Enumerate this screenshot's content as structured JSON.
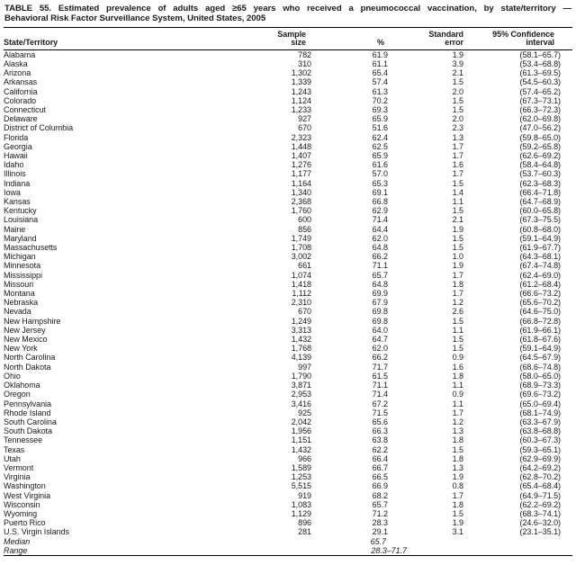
{
  "title": {
    "line1": "TABLE 55. Estimated prevalence of adults aged ≥65 years who received a pneumococcal vaccination, by state/territory —",
    "line2": "Behavioral Risk Factor Surveillance System, United States, 2005"
  },
  "columns": {
    "state": "State/Territory",
    "sample_line1": "Sample",
    "sample_line2": "size",
    "pct": "%",
    "se_line1": "Standard",
    "se_line2": "error",
    "ci_line1": "95% Confidence",
    "ci_line2": "interval"
  },
  "rows": [
    {
      "state": "Alabama",
      "sample": "782",
      "pct": "61.9",
      "se": "1.9",
      "ci": "(58.1–65.7)"
    },
    {
      "state": "Alaska",
      "sample": "310",
      "pct": "61.1",
      "se": "3.9",
      "ci": "(53.4–68.8)"
    },
    {
      "state": "Arizona",
      "sample": "1,302",
      "pct": "65.4",
      "se": "2.1",
      "ci": "(61.3–69.5)"
    },
    {
      "state": "Arkansas",
      "sample": "1,339",
      "pct": "57.4",
      "se": "1.5",
      "ci": "(54.5–60.3)"
    },
    {
      "state": "California",
      "sample": "1,243",
      "pct": "61.3",
      "se": "2.0",
      "ci": "(57.4–65.2)"
    },
    {
      "state": "Colorado",
      "sample": "1,124",
      "pct": "70.2",
      "se": "1.5",
      "ci": "(67.3–73.1)"
    },
    {
      "state": "Connecticut",
      "sample": "1,233",
      "pct": "69.3",
      "se": "1.5",
      "ci": "(66.3–72.3)"
    },
    {
      "state": "Delaware",
      "sample": "927",
      "pct": "65.9",
      "se": "2.0",
      "ci": "(62.0–69.8)"
    },
    {
      "state": "District of Columbia",
      "sample": "670",
      "pct": "51.6",
      "se": "2.3",
      "ci": "(47.0–56.2)"
    },
    {
      "state": "Florida",
      "sample": "2,323",
      "pct": "62.4",
      "se": "1.3",
      "ci": "(59.8–65.0)"
    },
    {
      "state": "Georgia",
      "sample": "1,448",
      "pct": "62.5",
      "se": "1.7",
      "ci": "(59.2–65.8)"
    },
    {
      "state": "Hawaii",
      "sample": "1,407",
      "pct": "65.9",
      "se": "1.7",
      "ci": "(62.6–69.2)"
    },
    {
      "state": "Idaho",
      "sample": "1,276",
      "pct": "61.6",
      "se": "1.6",
      "ci": "(58.4–64.8)"
    },
    {
      "state": "Illinois",
      "sample": "1,177",
      "pct": "57.0",
      "se": "1.7",
      "ci": "(53.7–60.3)"
    },
    {
      "state": "Indiana",
      "sample": "1,164",
      "pct": "65.3",
      "se": "1.5",
      "ci": "(62.3–68.3)"
    },
    {
      "state": "Iowa",
      "sample": "1,340",
      "pct": "69.1",
      "se": "1.4",
      "ci": "(66.4–71.8)"
    },
    {
      "state": "Kansas",
      "sample": "2,368",
      "pct": "66.8",
      "se": "1.1",
      "ci": "(64.7–68.9)"
    },
    {
      "state": "Kentucky",
      "sample": "1,760",
      "pct": "62.9",
      "se": "1.5",
      "ci": "(60.0–65.8)"
    },
    {
      "state": "Louisiana",
      "sample": "600",
      "pct": "71.4",
      "se": "2.1",
      "ci": "(67.3–75.5)"
    },
    {
      "state": "Maine",
      "sample": "856",
      "pct": "64.4",
      "se": "1.9",
      "ci": "(60.8–68.0)"
    },
    {
      "state": "Maryland",
      "sample": "1,749",
      "pct": "62.0",
      "se": "1.5",
      "ci": "(59.1–64.9)"
    },
    {
      "state": "Massachusetts",
      "sample": "1,708",
      "pct": "64.8",
      "se": "1.5",
      "ci": "(61.9–67.7)"
    },
    {
      "state": "Michigan",
      "sample": "3,002",
      "pct": "66.2",
      "se": "1.0",
      "ci": "(64.3–68.1)"
    },
    {
      "state": "Minnesota",
      "sample": "661",
      "pct": "71.1",
      "se": "1.9",
      "ci": "(67.4–74.8)"
    },
    {
      "state": "Mississippi",
      "sample": "1,074",
      "pct": "65.7",
      "se": "1.7",
      "ci": "(62.4–69.0)"
    },
    {
      "state": "Missouri",
      "sample": "1,418",
      "pct": "64.8",
      "se": "1.8",
      "ci": "(61.2–68.4)"
    },
    {
      "state": "Montana",
      "sample": "1,112",
      "pct": "69.9",
      "se": "1.7",
      "ci": "(66.6–73.2)"
    },
    {
      "state": "Nebraska",
      "sample": "2,310",
      "pct": "67.9",
      "se": "1.2",
      "ci": "(65.6–70.2)"
    },
    {
      "state": "Nevada",
      "sample": "670",
      "pct": "69.8",
      "se": "2.6",
      "ci": "(64.6–75.0)"
    },
    {
      "state": "New Hampshire",
      "sample": "1,249",
      "pct": "69.8",
      "se": "1.5",
      "ci": "(66.8–72.8)"
    },
    {
      "state": "New Jersey",
      "sample": "3,313",
      "pct": "64.0",
      "se": "1.1",
      "ci": "(61.9–66.1)"
    },
    {
      "state": "New Mexico",
      "sample": "1,432",
      "pct": "64.7",
      "se": "1.5",
      "ci": "(61.8–67.6)"
    },
    {
      "state": "New York",
      "sample": "1,768",
      "pct": "62.0",
      "se": "1.5",
      "ci": "(59.1–64.9)"
    },
    {
      "state": "North Carolina",
      "sample": "4,139",
      "pct": "66.2",
      "se": "0.9",
      "ci": "(64.5–67.9)"
    },
    {
      "state": "North Dakota",
      "sample": "997",
      "pct": "71.7",
      "se": "1.6",
      "ci": "(68.6–74.8)"
    },
    {
      "state": "Ohio",
      "sample": "1,790",
      "pct": "61.5",
      "se": "1.8",
      "ci": "(58.0–65.0)"
    },
    {
      "state": "Oklahoma",
      "sample": "3,871",
      "pct": "71.1",
      "se": "1.1",
      "ci": "(68.9–73.3)"
    },
    {
      "state": "Oregon",
      "sample": "2,953",
      "pct": "71.4",
      "se": "0.9",
      "ci": "(69.6–73.2)"
    },
    {
      "state": "Pennsylvania",
      "sample": "3,416",
      "pct": "67.2",
      "se": "1.1",
      "ci": "(65.0–69.4)"
    },
    {
      "state": "Rhode Island",
      "sample": "925",
      "pct": "71.5",
      "se": "1.7",
      "ci": "(68.1–74.9)"
    },
    {
      "state": "South Carolina",
      "sample": "2,042",
      "pct": "65.6",
      "se": "1.2",
      "ci": "(63.3–67.9)"
    },
    {
      "state": "South Dakota",
      "sample": "1,956",
      "pct": "66.3",
      "se": "1.3",
      "ci": "(63.8–68.8)"
    },
    {
      "state": "Tennessee",
      "sample": "1,151",
      "pct": "63.8",
      "se": "1.8",
      "ci": "(60.3–67.3)"
    },
    {
      "state": "Texas",
      "sample": "1,432",
      "pct": "62.2",
      "se": "1.5",
      "ci": "(59.3–65.1)"
    },
    {
      "state": "Utah",
      "sample": "966",
      "pct": "66.4",
      "se": "1.8",
      "ci": "(62.9–69.9)"
    },
    {
      "state": "Vermont",
      "sample": "1,589",
      "pct": "66.7",
      "se": "1.3",
      "ci": "(64.2–69.2)"
    },
    {
      "state": "Virginia",
      "sample": "1,253",
      "pct": "66.5",
      "se": "1.9",
      "ci": "(62.8–70.2)"
    },
    {
      "state": "Washington",
      "sample": "5,515",
      "pct": "66.9",
      "se": "0.8",
      "ci": "(65.4–68.4)"
    },
    {
      "state": "West Virginia",
      "sample": "919",
      "pct": "68.2",
      "se": "1.7",
      "ci": "(64.9–71.5)"
    },
    {
      "state": "Wisconsin",
      "sample": "1,083",
      "pct": "65.7",
      "se": "1.8",
      "ci": "(62.2–69.2)"
    },
    {
      "state": "Wyoming",
      "sample": "1,129",
      "pct": "71.2",
      "se": "1.5",
      "ci": "(68.3–74.1)"
    },
    {
      "state": "Puerto Rico",
      "sample": "896",
      "pct": "28.3",
      "se": "1.9",
      "ci": "(24.6–32.0)"
    },
    {
      "state": "U.S. Virgin Islands",
      "sample": "281",
      "pct": "29.1",
      "se": "3.1",
      "ci": "(23.1–35.1)"
    }
  ],
  "summary": [
    {
      "label": "Median",
      "pct": "65.7"
    },
    {
      "label": "Range",
      "pct": "28.3–71.7"
    }
  ]
}
